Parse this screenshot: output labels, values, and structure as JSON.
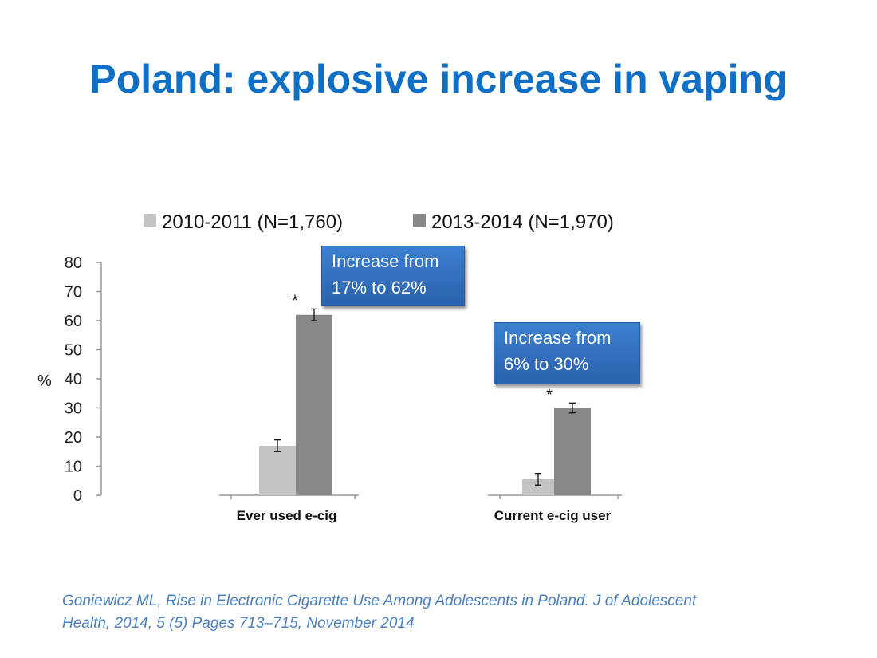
{
  "title": "Poland: explosive increase in vaping",
  "chart_data": {
    "type": "bar",
    "categories": [
      "Ever used e-cig",
      "Current e-cig user"
    ],
    "series": [
      {
        "name": "2010-2011 (N=1,760)",
        "values": [
          17,
          5.5
        ],
        "errors": [
          2,
          2
        ],
        "color": "#c3c3c3"
      },
      {
        "name": "2013-2014 (N=1,970)",
        "values": [
          62,
          30
        ],
        "errors": [
          2,
          1.7
        ],
        "color": "#888888"
      }
    ],
    "ylabel": "%",
    "ylim": [
      0,
      80
    ],
    "yticks": [
      "0",
      "10",
      "20",
      "30",
      "40",
      "50",
      "60",
      "70",
      "80"
    ],
    "legend": "top",
    "significance_marks": [
      "*",
      "*"
    ],
    "annotations": [
      "Increase from 17% to 62%",
      "Increase from 6% to 30%"
    ]
  },
  "callouts": [
    {
      "line1": "Increase from",
      "line2": "17% to 62%"
    },
    {
      "line1": "Increase from",
      "line2": "6% to 30%"
    }
  ],
  "citation": {
    "line1": "Goniewicz ML, Rise in Electronic Cigarette Use Among Adolescents in Poland. J of Adolescent",
    "line2": "Health,  2014, 5 (5) Pages 713–715, November 2014"
  }
}
